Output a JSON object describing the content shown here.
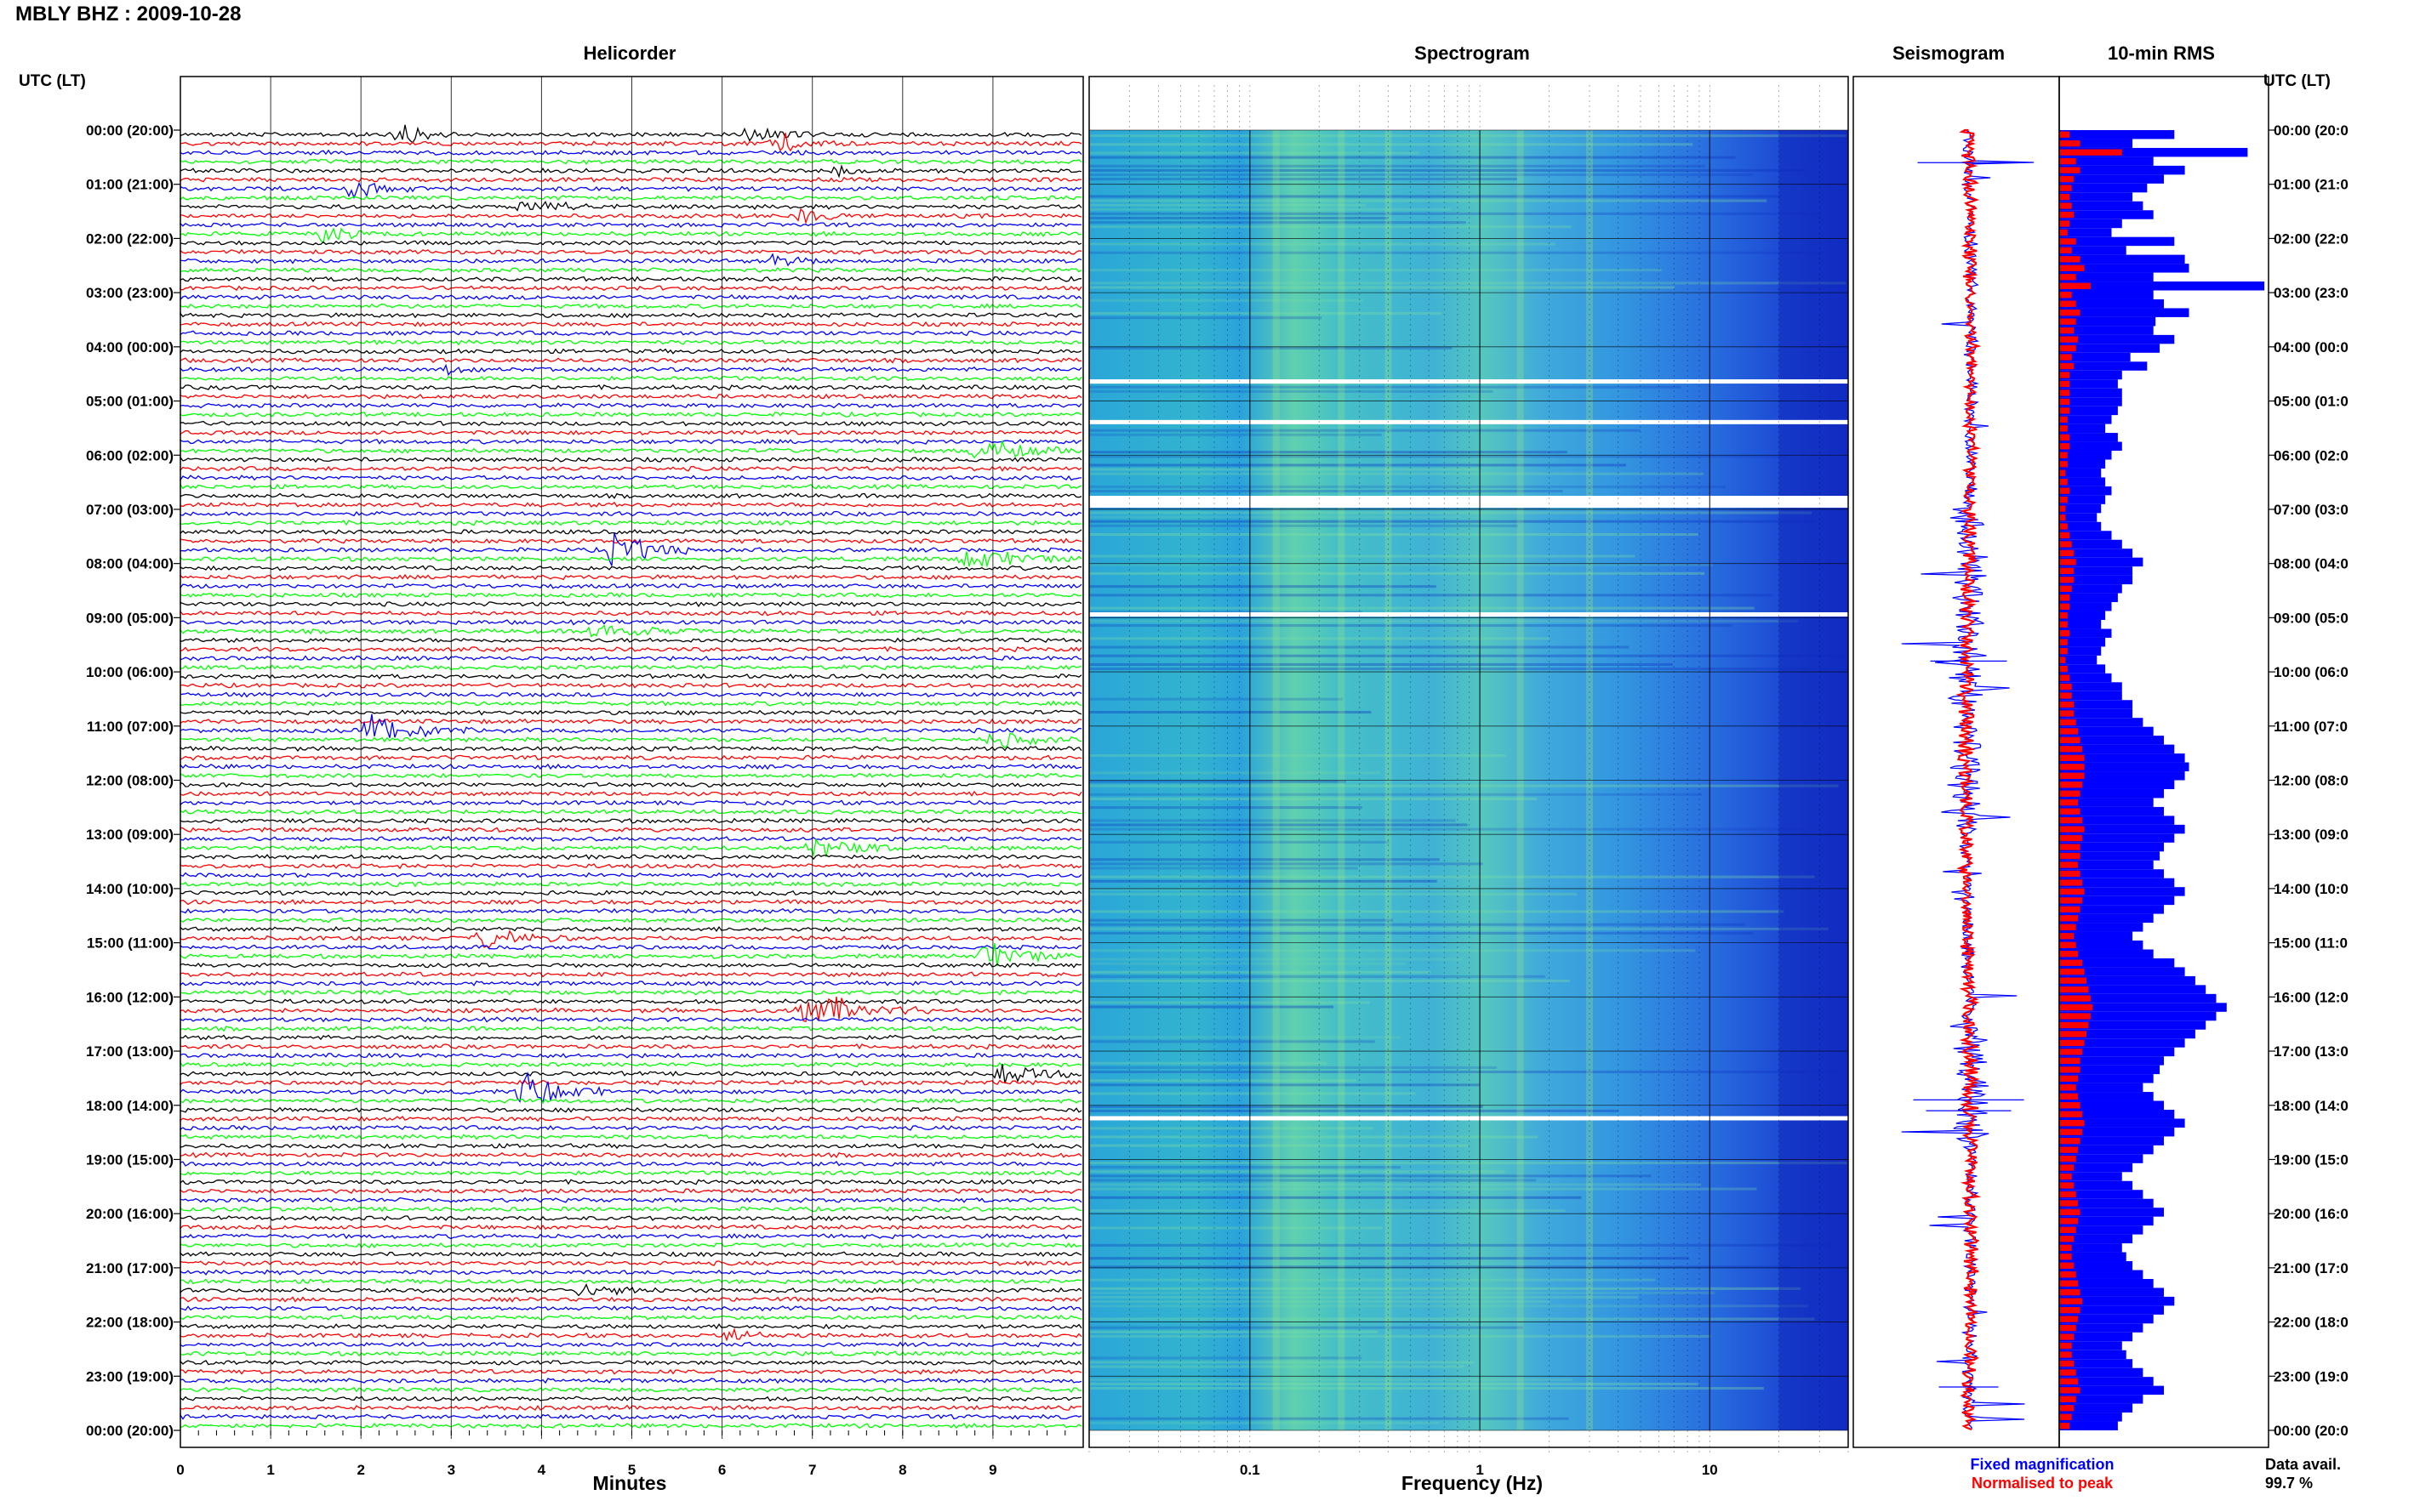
{
  "header": {
    "station_title": "MBLY BHZ : 2009-10-28",
    "left_axis_title": "UTC (LT)",
    "right_axis_title": "UTC (LT)"
  },
  "panels": {
    "helicorder_title": "Helicorder",
    "spectrogram_title": "Spectrogram",
    "seismogram_title": "Seismogram",
    "rms_title": "10-min RMS"
  },
  "time_labels": [
    "00:00 (20:00)",
    "01:00 (21:00)",
    "02:00 (22:00)",
    "03:00 (23:00)",
    "04:00 (00:00)",
    "05:00 (01:00)",
    "06:00 (02:00)",
    "07:00 (03:00)",
    "08:00 (04:00)",
    "09:00 (05:00)",
    "10:00 (06:00)",
    "11:00 (07:00)",
    "12:00 (08:00)",
    "13:00 (09:00)",
    "14:00 (10:00)",
    "15:00 (11:00)",
    "16:00 (12:00)",
    "17:00 (13:00)",
    "18:00 (14:00)",
    "19:00 (15:00)",
    "20:00 (16:00)",
    "21:00 (17:00)",
    "22:00 (18:00)",
    "23:00 (19:00)",
    "00:00 (20:00)"
  ],
  "right_time_labels": [
    "00:00 (20:0",
    "01:00 (21:0",
    "02:00 (22:0",
    "03:00 (23:0",
    "04:00 (00:0",
    "05:00 (01:0",
    "06:00 (02:0",
    "07:00 (03:0",
    "08:00 (04:0",
    "09:00 (05:0",
    "10:00 (06:0",
    "11:00 (07:0",
    "12:00 (08:0",
    "13:00 (09:0",
    "14:00 (10:0",
    "15:00 (11:0",
    "16:00 (12:0",
    "17:00 (13:0",
    "18:00 (14:0",
    "19:00 (15:0",
    "20:00 (16:0",
    "21:00 (17:0",
    "22:00 (18:0",
    "23:00 (19:0",
    "00:00 (20:0"
  ],
  "footer": {
    "minutes_label": "Minutes",
    "frequency_label": "Frequency (Hz)",
    "legend_fixed": "Fixed magnification",
    "legend_normalised": "Normalised to peak",
    "data_avail_label": "Data avail.",
    "data_avail_value": "99.7 %"
  },
  "colors": {
    "trace_black": "#000000",
    "trace_red": "#ff0000",
    "trace_blue": "#0000ff",
    "trace_green": "#00ff00",
    "legend_fixed": "#0000ff",
    "legend_normalised": "#ff0000"
  },
  "chart_data": [
    {
      "type": "line",
      "name": "Helicorder",
      "xlabel": "Minutes",
      "ylabel": "UTC (LT)",
      "x_ticks": [
        "0",
        "1",
        "2",
        "3",
        "4",
        "5",
        "6",
        "7",
        "8",
        "9"
      ],
      "xlim": [
        0,
        10
      ],
      "row_duration_minutes": 10,
      "rows_per_hour": 6,
      "trace_color_cycle": [
        "black",
        "red",
        "blue",
        "green"
      ],
      "events": [
        {
          "row": 0,
          "start_min": 2.3,
          "dur_min": 0.8,
          "amp": 0.7
        },
        {
          "row": 0,
          "start_min": 6.2,
          "dur_min": 1.0,
          "amp": 0.6
        },
        {
          "row": 1,
          "start_min": 6.5,
          "dur_min": 1.0,
          "amp": 0.6
        },
        {
          "row": 4,
          "start_min": 7.2,
          "dur_min": 0.4,
          "amp": 0.5
        },
        {
          "row": 6,
          "start_min": 1.8,
          "dur_min": 0.8,
          "amp": 0.6
        },
        {
          "row": 8,
          "start_min": 3.7,
          "dur_min": 1.2,
          "amp": 0.5
        },
        {
          "row": 9,
          "start_min": 6.8,
          "dur_min": 0.6,
          "amp": 0.6
        },
        {
          "row": 11,
          "start_min": 1.5,
          "dur_min": 0.8,
          "amp": 0.5
        },
        {
          "row": 14,
          "start_min": 6.5,
          "dur_min": 0.8,
          "amp": 0.4
        },
        {
          "row": 26,
          "start_min": 2.9,
          "dur_min": 0.5,
          "amp": 0.4
        },
        {
          "row": 35,
          "start_min": 8.7,
          "dur_min": 1.3,
          "amp": 0.8
        },
        {
          "row": 46,
          "start_min": 4.7,
          "dur_min": 1.0,
          "amp": 1.2
        },
        {
          "row": 47,
          "start_min": 8.6,
          "dur_min": 1.4,
          "amp": 0.7
        },
        {
          "row": 55,
          "start_min": 4.5,
          "dur_min": 1.3,
          "amp": 0.5
        },
        {
          "row": 66,
          "start_min": 2.0,
          "dur_min": 1.3,
          "amp": 1.2
        },
        {
          "row": 67,
          "start_min": 8.9,
          "dur_min": 1.1,
          "amp": 0.5
        },
        {
          "row": 79,
          "start_min": 6.9,
          "dur_min": 1.3,
          "amp": 0.6
        },
        {
          "row": 89,
          "start_min": 3.2,
          "dur_min": 1.2,
          "amp": 0.6
        },
        {
          "row": 91,
          "start_min": 8.8,
          "dur_min": 1.2,
          "amp": 0.8
        },
        {
          "row": 97,
          "start_min": 6.8,
          "dur_min": 1.5,
          "amp": 1.3
        },
        {
          "row": 106,
          "start_min": 3.7,
          "dur_min": 1.1,
          "amp": 1.2
        },
        {
          "row": 104,
          "start_min": 9.0,
          "dur_min": 1.0,
          "amp": 0.9
        },
        {
          "row": 128,
          "start_min": 4.3,
          "dur_min": 1.0,
          "amp": 0.5
        },
        {
          "row": 133,
          "start_min": 6.0,
          "dur_min": 0.8,
          "amp": 0.5
        }
      ]
    },
    {
      "type": "heatmap",
      "name": "Spectrogram",
      "xlabel": "Frequency (Hz)",
      "x_scale": "log",
      "xlim": [
        0.02,
        40
      ],
      "x_ticks": [
        "0.1",
        "1",
        "10"
      ],
      "gaps_utc_hours": [
        4.6,
        5.35,
        6.75,
        8.9,
        18.2
      ],
      "energy_bands_hz": [
        0.13,
        0.25,
        0.4,
        1.5,
        3
      ]
    },
    {
      "type": "line",
      "name": "Seismogram",
      "series": [
        {
          "name": "Fixed magnification",
          "color": "#0000ff"
        },
        {
          "name": "Normalised to peak",
          "color": "#ff0000"
        }
      ]
    },
    {
      "type": "bar",
      "name": "10-min RMS",
      "orientation": "horizontal",
      "series": [
        {
          "name": "Fixed magnification",
          "color": "#0000ff",
          "values": [
            0.55,
            0.35,
            0.9,
            0.45,
            0.6,
            0.5,
            0.42,
            0.35,
            0.4,
            0.45,
            0.3,
            0.25,
            0.55,
            0.32,
            0.6,
            0.62,
            0.45,
            0.98,
            0.45,
            0.5,
            0.62,
            0.46,
            0.45,
            0.55,
            0.48,
            0.34,
            0.42,
            0.3,
            0.28,
            0.3,
            0.3,
            0.28,
            0.25,
            0.22,
            0.28,
            0.3,
            0.25,
            0.22,
            0.2,
            0.22,
            0.25,
            0.22,
            0.2,
            0.18,
            0.2,
            0.25,
            0.3,
            0.35,
            0.4,
            0.35,
            0.35,
            0.3,
            0.28,
            0.25,
            0.22,
            0.2,
            0.25,
            0.22,
            0.2,
            0.18,
            0.22,
            0.25,
            0.3,
            0.3,
            0.35,
            0.35,
            0.4,
            0.45,
            0.5,
            0.55,
            0.6,
            0.62,
            0.6,
            0.55,
            0.5,
            0.45,
            0.5,
            0.55,
            0.6,
            0.55,
            0.5,
            0.48,
            0.45,
            0.5,
            0.55,
            0.6,
            0.55,
            0.5,
            0.45,
            0.4,
            0.35,
            0.4,
            0.45,
            0.55,
            0.6,
            0.65,
            0.7,
            0.75,
            0.8,
            0.75,
            0.7,
            0.65,
            0.6,
            0.55,
            0.5,
            0.48,
            0.45,
            0.4,
            0.45,
            0.5,
            0.55,
            0.6,
            0.55,
            0.5,
            0.45,
            0.4,
            0.35,
            0.3,
            0.35,
            0.4,
            0.45,
            0.5,
            0.45,
            0.4,
            0.35,
            0.3,
            0.32,
            0.35,
            0.4,
            0.45,
            0.5,
            0.55,
            0.5,
            0.45,
            0.4,
            0.35,
            0.3,
            0.32,
            0.35,
            0.4,
            0.45,
            0.5,
            0.4,
            0.35,
            0.3,
            0.28
          ],
          "note_values_relative": true
        },
        {
          "name": "Normalised to peak",
          "color": "#ff0000",
          "values": [
            0.05,
            0.1,
            0.3,
            0.08,
            0.1,
            0.07,
            0.06,
            0.05,
            0.06,
            0.07,
            0.05,
            0.04,
            0.08,
            0.06,
            0.1,
            0.12,
            0.08,
            0.15,
            0.06,
            0.08,
            0.1,
            0.08,
            0.07,
            0.09,
            0.08,
            0.06,
            0.07,
            0.05,
            0.05,
            0.05,
            0.05,
            0.05,
            0.04,
            0.04,
            0.05,
            0.05,
            0.04,
            0.04,
            0.03,
            0.04,
            0.05,
            0.04,
            0.03,
            0.03,
            0.04,
            0.05,
            0.06,
            0.07,
            0.08,
            0.07,
            0.07,
            0.06,
            0.05,
            0.05,
            0.04,
            0.04,
            0.05,
            0.04,
            0.04,
            0.03,
            0.04,
            0.05,
            0.06,
            0.06,
            0.07,
            0.07,
            0.08,
            0.09,
            0.1,
            0.11,
            0.12,
            0.12,
            0.12,
            0.11,
            0.1,
            0.09,
            0.1,
            0.11,
            0.12,
            0.11,
            0.1,
            0.1,
            0.09,
            0.1,
            0.11,
            0.12,
            0.11,
            0.1,
            0.09,
            0.08,
            0.07,
            0.08,
            0.09,
            0.11,
            0.12,
            0.13,
            0.14,
            0.15,
            0.16,
            0.15,
            0.14,
            0.13,
            0.12,
            0.11,
            0.1,
            0.1,
            0.09,
            0.08,
            0.09,
            0.1,
            0.11,
            0.12,
            0.11,
            0.1,
            0.09,
            0.08,
            0.07,
            0.06,
            0.07,
            0.08,
            0.09,
            0.1,
            0.09,
            0.08,
            0.07,
            0.06,
            0.06,
            0.07,
            0.08,
            0.09,
            0.1,
            0.11,
            0.1,
            0.09,
            0.08,
            0.07,
            0.06,
            0.06,
            0.07,
            0.08,
            0.09,
            0.1,
            0.08,
            0.07,
            0.06,
            0.05
          ]
        }
      ]
    }
  ]
}
